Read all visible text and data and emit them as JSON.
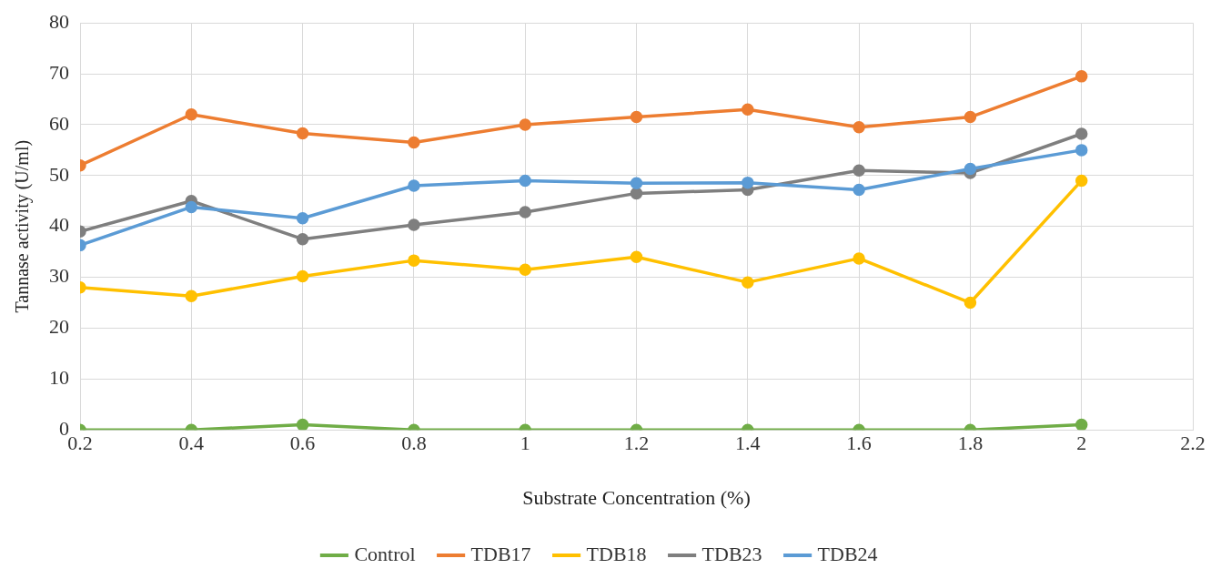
{
  "chart_data": {
    "type": "line",
    "xlabel": "Substrate Concentration (%)",
    "ylabel": "Tannase activity (U/ml)",
    "x": [
      0.2,
      0.4,
      0.6,
      0.8,
      1,
      1.2,
      1.4,
      1.6,
      1.8,
      2
    ],
    "series": [
      {
        "name": "Control",
        "color": "#70ad47",
        "values": [
          0,
          0,
          1,
          0,
          0,
          0,
          0,
          0,
          0,
          1
        ]
      },
      {
        "name": "TDB17",
        "color": "#ed7d31",
        "values": [
          52,
          62,
          58.3,
          56.5,
          60,
          61.5,
          63,
          59.5,
          61.5,
          69.5
        ]
      },
      {
        "name": "TDB18",
        "color": "#ffc000",
        "values": [
          28,
          26.3,
          30.2,
          33.3,
          31.5,
          34,
          29,
          33.7,
          25,
          49
        ]
      },
      {
        "name": "TDB23",
        "color": "#7f7f7f",
        "values": [
          39,
          45,
          37.5,
          40.3,
          42.8,
          46.5,
          47.2,
          51,
          50.5,
          58.2
        ]
      },
      {
        "name": "TDB24",
        "color": "#5b9bd5",
        "values": [
          36.3,
          43.8,
          41.6,
          48,
          49,
          48.5,
          48.6,
          47.2,
          51.3,
          55
        ]
      }
    ],
    "xlim": [
      0.2,
      2.2
    ],
    "xticks": [
      0.2,
      0.4,
      0.6,
      0.8,
      1,
      1.2,
      1.4,
      1.6,
      1.8,
      2,
      2.2
    ],
    "ylim": [
      0,
      80
    ],
    "yticks": [
      0,
      10,
      20,
      30,
      40,
      50,
      60,
      70,
      80
    ],
    "grid": true,
    "legend": "bottom",
    "marker": "circle",
    "line_style": "solid"
  }
}
